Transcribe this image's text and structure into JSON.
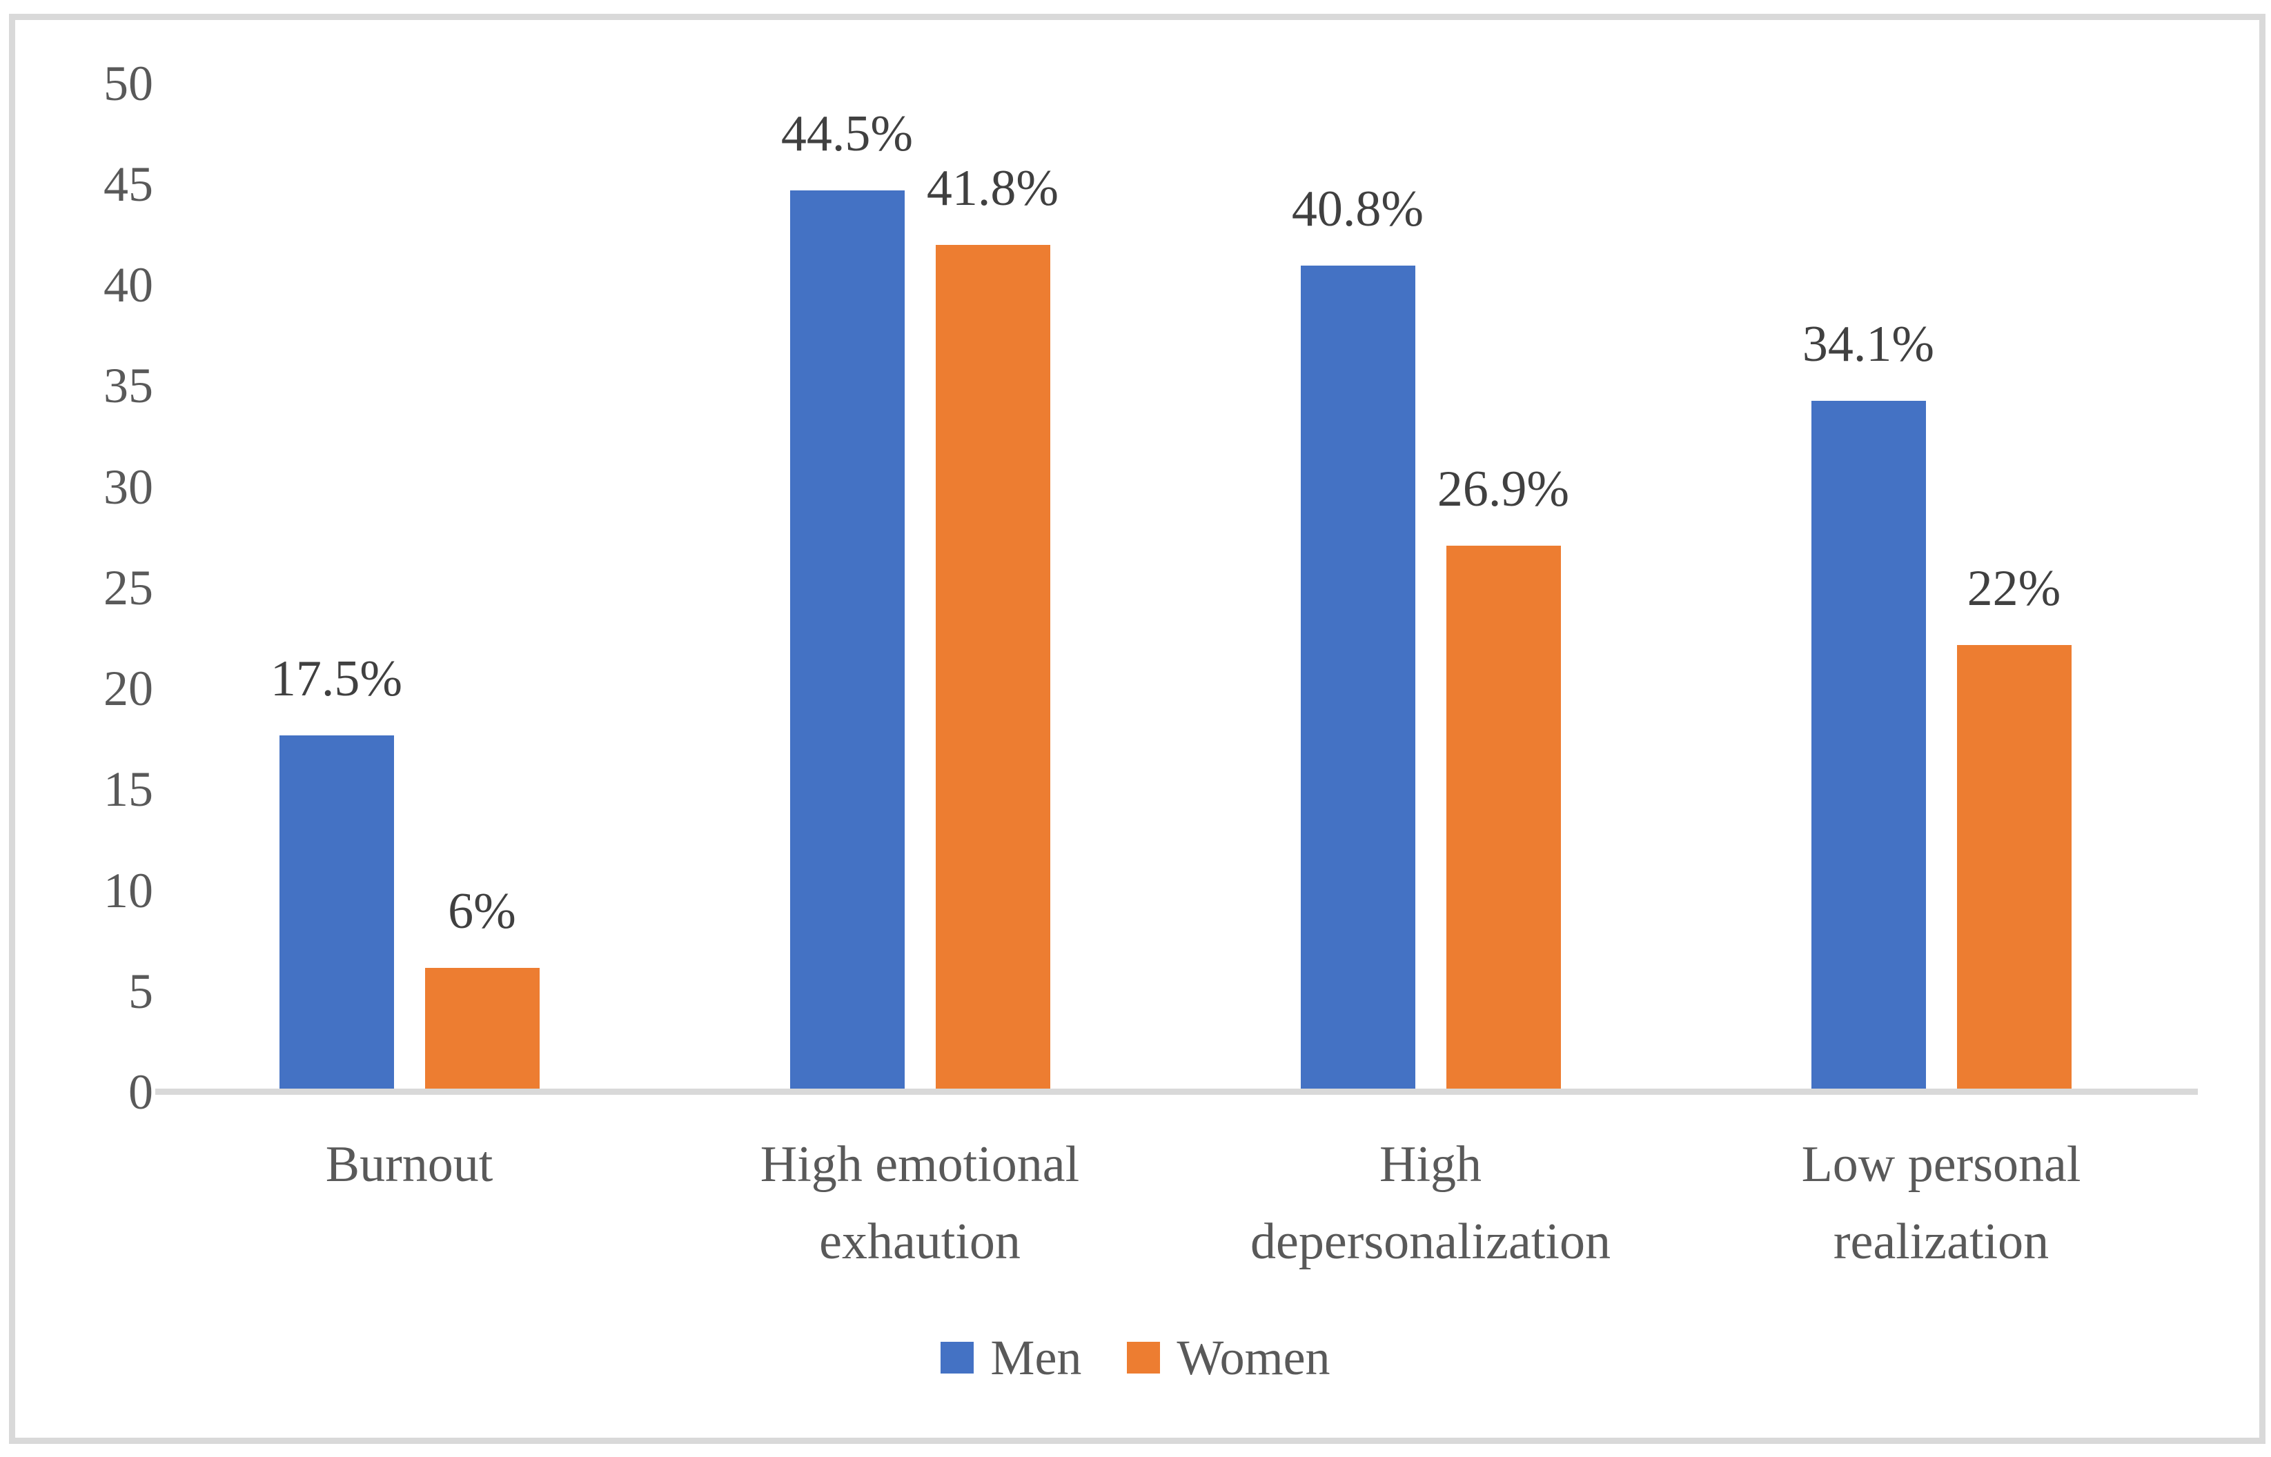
{
  "figure": {
    "background": "#FFFFFF",
    "frame_color": "#D9D9D9"
  },
  "chart_data": {
    "type": "bar",
    "title": "",
    "xlabel": "",
    "ylabel": "",
    "categories": [
      "Burnout",
      "High emotional exhaution",
      "High depersonalization",
      "Low personal realization"
    ],
    "category_lines": [
      [
        "Burnout"
      ],
      [
        "High emotional",
        "exhaution"
      ],
      [
        "High",
        "depersonalization"
      ],
      [
        "Low personal",
        "realization"
      ]
    ],
    "series": [
      {
        "name": "Men",
        "color": "#4472C4",
        "values": [
          17.5,
          44.5,
          40.8,
          34.1
        ],
        "data_labels": [
          "17.5%",
          "44.5%",
          "40.8%",
          "34.1%"
        ]
      },
      {
        "name": "Women",
        "color": "#ED7D31",
        "values": [
          6,
          41.8,
          26.9,
          22
        ],
        "data_labels": [
          "6%",
          "41.8%",
          "26.9%",
          "22%"
        ]
      }
    ],
    "y_axis": {
      "min": 0,
      "max": 50,
      "step": 5,
      "tick_labels": [
        "0",
        "5",
        "10",
        "15",
        "20",
        "25",
        "30",
        "35",
        "40",
        "45",
        "50"
      ]
    },
    "legend": {
      "position": "bottom",
      "entries": [
        {
          "label": "Men",
          "color": "#4472C4"
        },
        {
          "label": "Women",
          "color": "#ED7D31"
        }
      ]
    },
    "grid": false,
    "axis_line_color": "#D9D9D9",
    "axis_text_color": "#595959",
    "data_label_color": "#404040"
  }
}
